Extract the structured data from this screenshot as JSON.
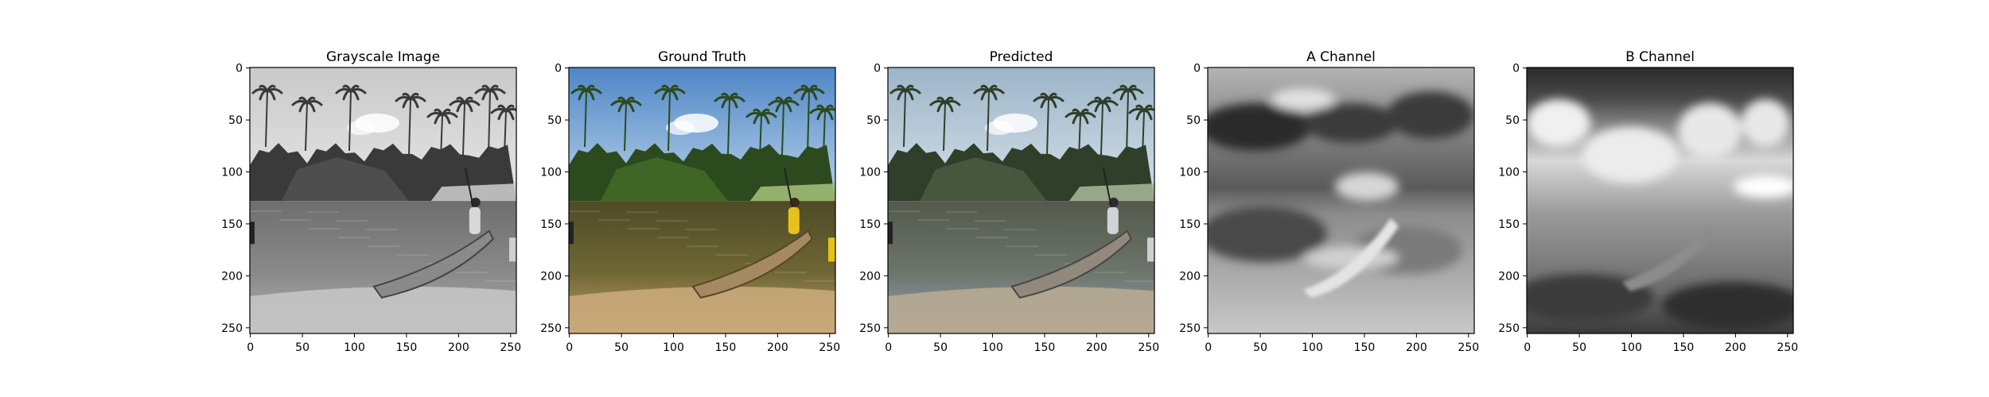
{
  "chart_data": [
    {
      "type": "image",
      "title": "Grayscale Image",
      "xlim": [
        0,
        255
      ],
      "ylim": [
        255,
        0
      ],
      "xticks": [
        0,
        50,
        100,
        150,
        200,
        250
      ],
      "yticks": [
        0,
        50,
        100,
        150,
        200,
        250
      ],
      "colormap": "gray",
      "scene": "lake with palm trees, dugout canoe with person"
    },
    {
      "type": "image",
      "title": "Ground Truth",
      "xlim": [
        0,
        255
      ],
      "ylim": [
        255,
        0
      ],
      "xticks": [
        0,
        50,
        100,
        150,
        200,
        250
      ],
      "yticks": [
        0,
        50,
        100,
        150,
        200,
        250
      ],
      "colormap": "rgb",
      "scene": "lake with palm trees, dugout canoe with person in yellow"
    },
    {
      "type": "image",
      "title": "Predicted",
      "xlim": [
        0,
        255
      ],
      "ylim": [
        255,
        0
      ],
      "xticks": [
        0,
        50,
        100,
        150,
        200,
        250
      ],
      "yticks": [
        0,
        50,
        100,
        150,
        200,
        250
      ],
      "colormap": "rgb-desaturated",
      "scene": "colorized lake scene"
    },
    {
      "type": "image",
      "title": "A Channel",
      "xlim": [
        0,
        255
      ],
      "ylim": [
        255,
        0
      ],
      "xticks": [
        0,
        50,
        100,
        150,
        200,
        250
      ],
      "yticks": [
        0,
        50,
        100,
        150,
        200,
        250
      ],
      "colormap": "gray",
      "scene": "blurry A chroma channel"
    },
    {
      "type": "image",
      "title": "B Channel",
      "xlim": [
        0,
        255
      ],
      "ylim": [
        255,
        0
      ],
      "xticks": [
        0,
        50,
        100,
        150,
        200,
        250
      ],
      "yticks": [
        0,
        50,
        100,
        150,
        200,
        250
      ],
      "colormap": "gray",
      "scene": "blurry B chroma channel"
    }
  ]
}
